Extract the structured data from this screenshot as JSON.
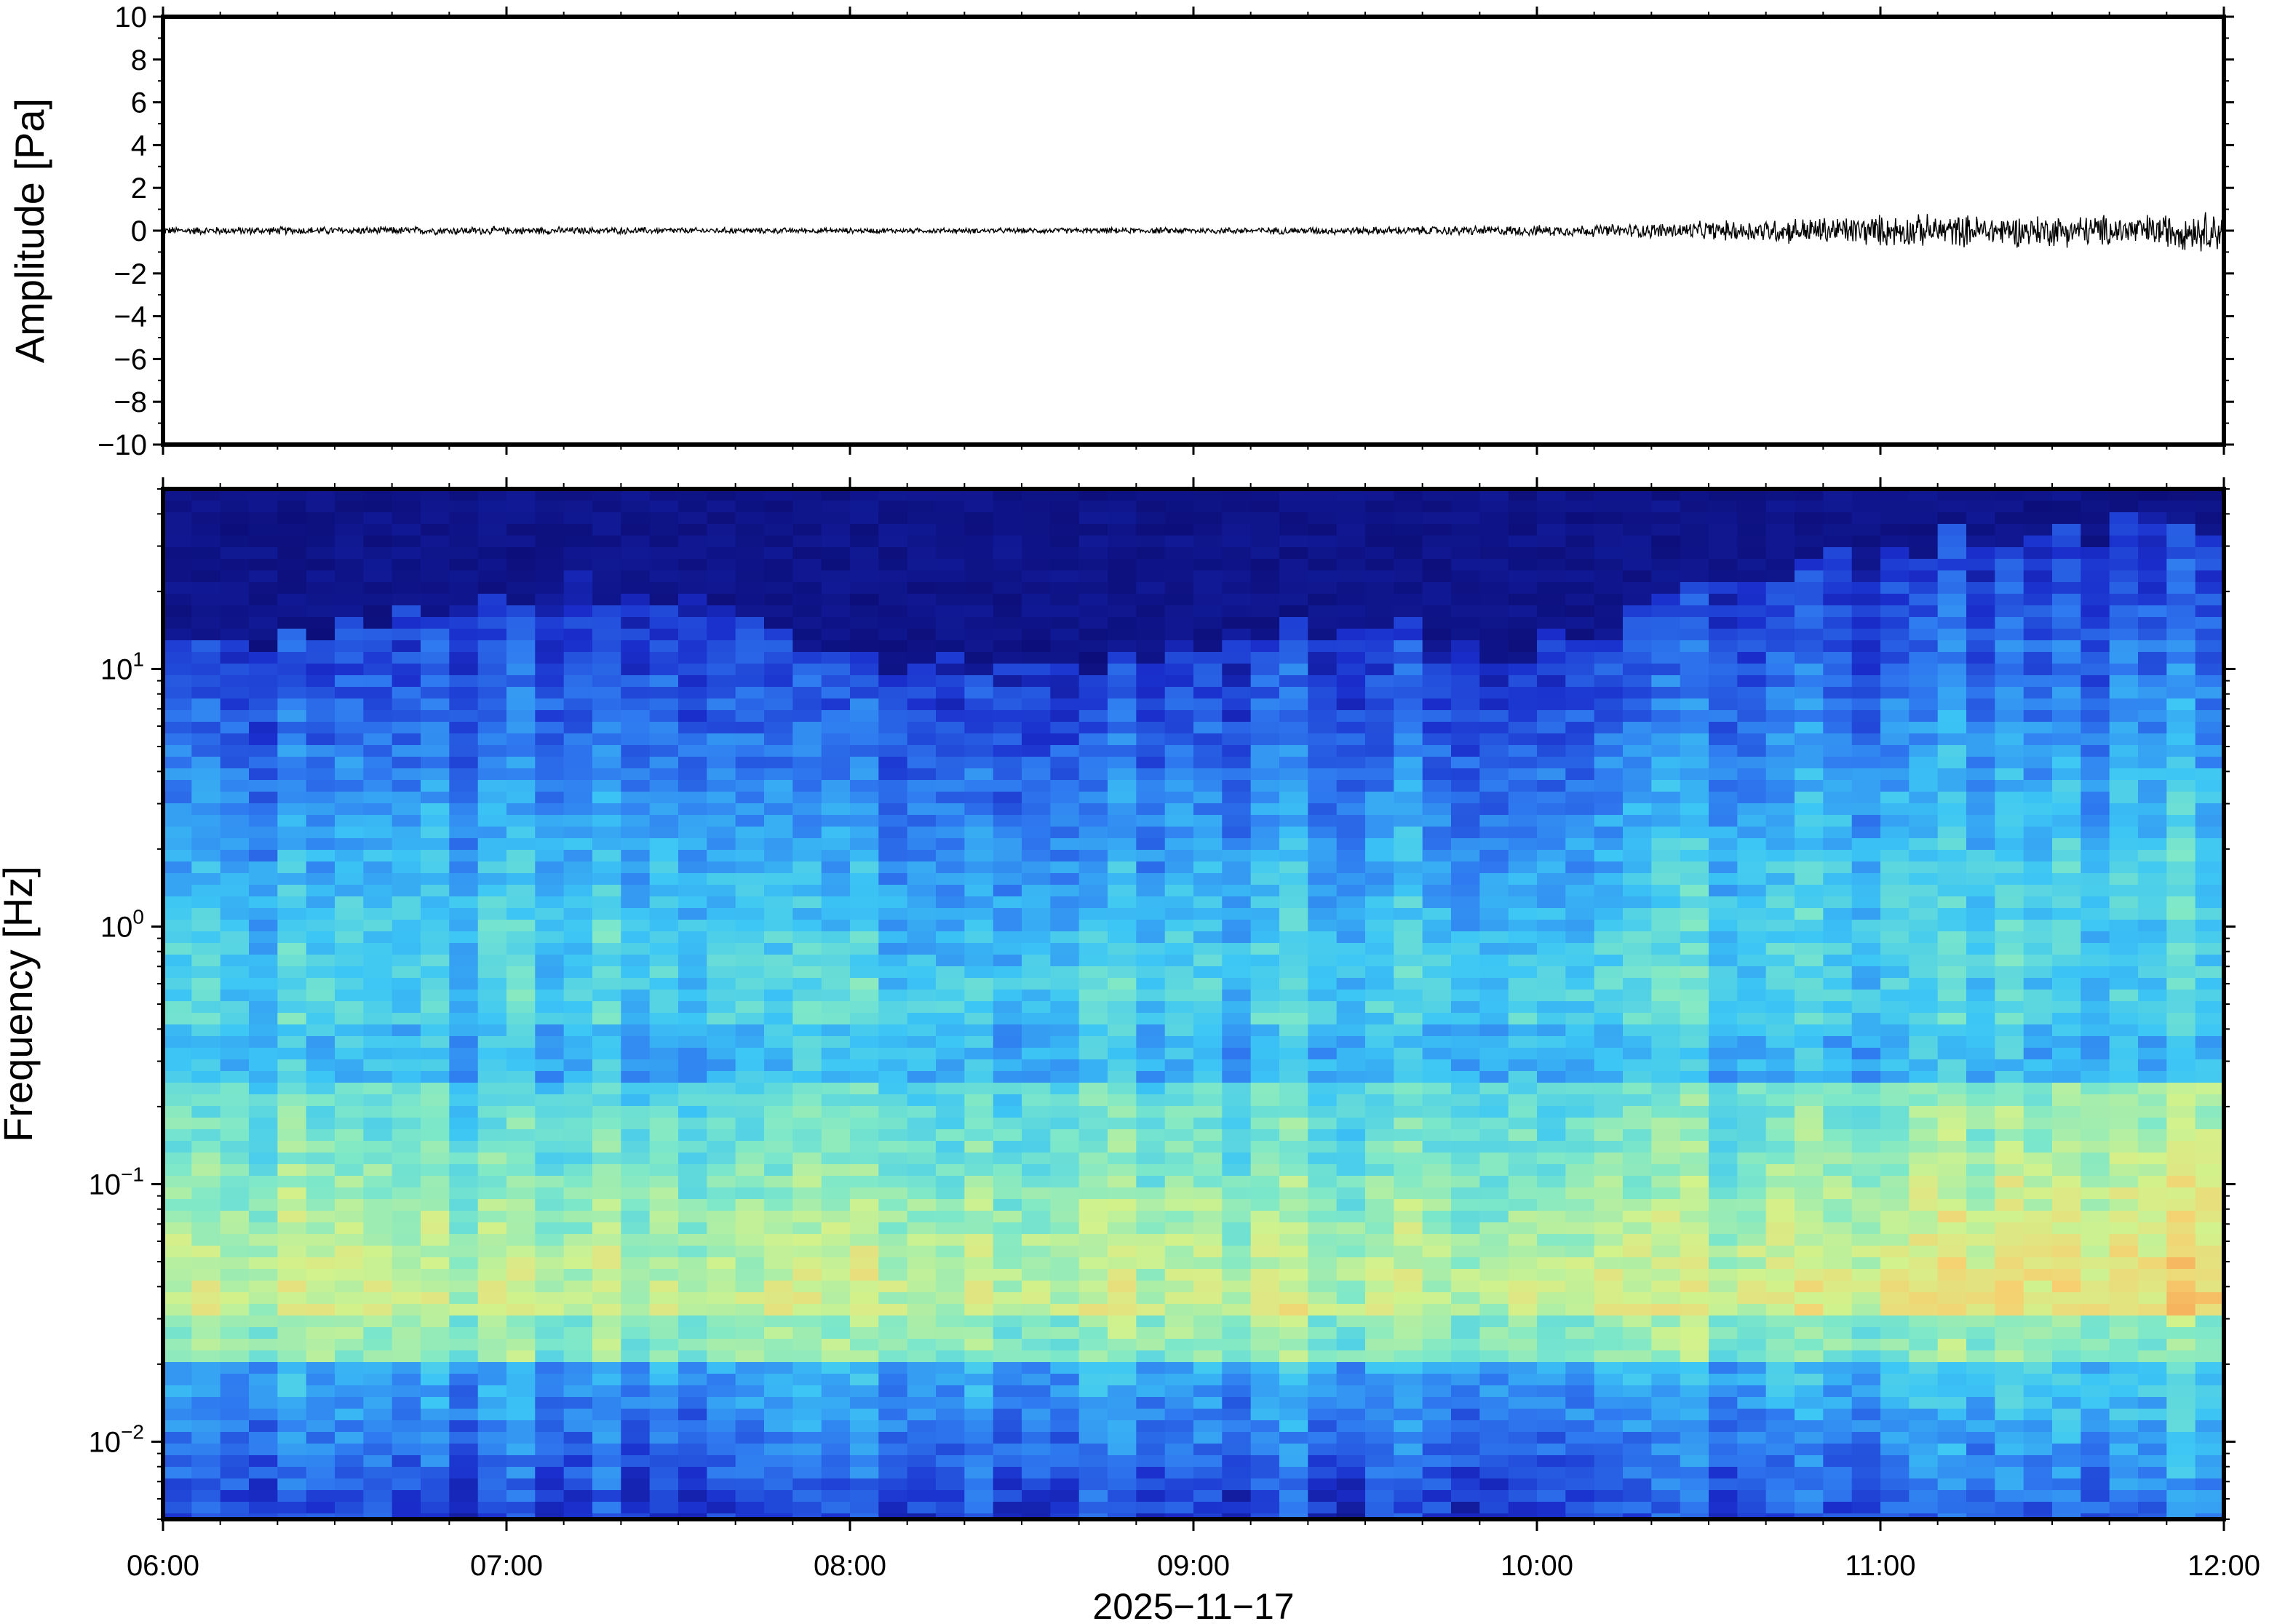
{
  "chart_data": [
    {
      "type": "line",
      "panel": "waveform",
      "ylabel": "Amplitude [Pa]",
      "ylim": [
        -10,
        10
      ],
      "yticks": [
        10,
        8,
        6,
        4,
        2,
        0,
        -2,
        -4,
        -6,
        -8,
        -10
      ],
      "ytick_labels": [
        "10",
        "8",
        "6",
        "4",
        "2",
        "0",
        "−2",
        "−4",
        "−6",
        "−8",
        "−10"
      ],
      "xlim": [
        "06:00",
        "12:00"
      ],
      "line_color": "#000000",
      "series": [
        {
          "x_hours": [
            6.0,
            6.5,
            7.0,
            7.5,
            8.0,
            8.5,
            9.0,
            9.5,
            10.0,
            10.25,
            10.5,
            10.75,
            11.0,
            11.25,
            11.5,
            11.75,
            12.0
          ],
          "envelope": [
            0.15,
            0.15,
            0.15,
            0.12,
            0.1,
            0.1,
            0.12,
            0.15,
            0.2,
            0.25,
            0.35,
            0.5,
            0.6,
            0.6,
            0.6,
            0.6,
            0.8
          ]
        }
      ]
    },
    {
      "type": "heatmap",
      "panel": "spectrogram",
      "ylabel": "Frequency [Hz]",
      "yscale": "log",
      "ylim": [
        0.005,
        50
      ],
      "yticks": [
        0.01,
        0.1,
        1,
        10
      ],
      "ytick_labels": [
        {
          "base": "10",
          "exp": "−2"
        },
        {
          "base": "10",
          "exp": "−1"
        },
        {
          "base": "10",
          "exp": "0"
        },
        {
          "base": "10",
          "exp": "1"
        }
      ],
      "xlabel": "2025−11−17",
      "xlim": [
        "06:00",
        "12:00"
      ],
      "xticks": [
        "06:00",
        "07:00",
        "08:00",
        "09:00",
        "10:00",
        "11:00",
        "12:00"
      ],
      "colormap": [
        "#0a0a6e",
        "#1a2ecc",
        "#2f7af0",
        "#3cc6f5",
        "#7ee8c8",
        "#d2f28c",
        "#f7d070",
        "#f5924a"
      ],
      "upper_cutoff_hz": [
        12,
        12,
        13,
        14,
        18,
        20,
        22,
        20,
        16,
        13,
        12,
        11,
        10,
        10,
        11,
        12,
        14,
        15,
        14,
        12,
        12,
        20,
        25,
        28,
        30,
        32,
        34,
        36,
        36
      ],
      "cutoff_time_hours": [
        6.0,
        6.2,
        6.4,
        6.6,
        6.8,
        7.0,
        7.2,
        7.4,
        7.6,
        7.8,
        8.0,
        8.2,
        8.4,
        8.6,
        8.8,
        9.0,
        9.2,
        9.4,
        9.6,
        9.8,
        10.2,
        10.4,
        10.6,
        10.8,
        11.0,
        11.2,
        11.4,
        11.6,
        12.0
      ]
    }
  ]
}
